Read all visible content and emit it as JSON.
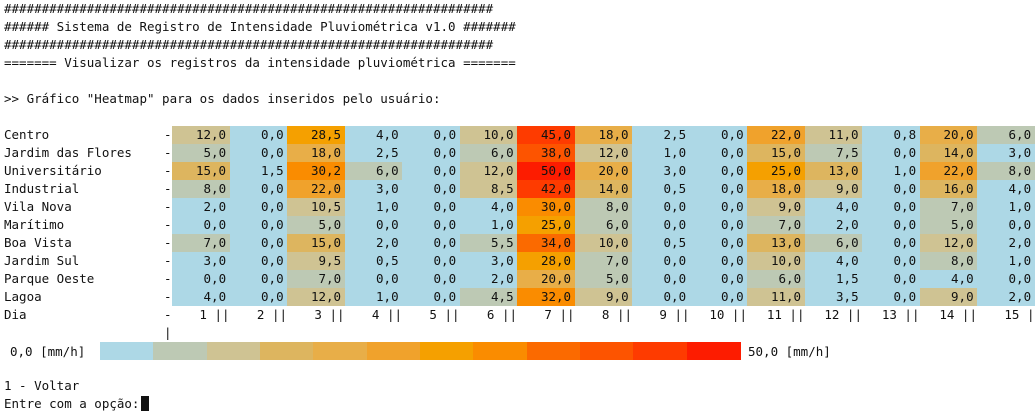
{
  "header": {
    "hash_line": "#################################################################",
    "title_line": "###### Sistema de Registro de Intensidade Pluviométrica v1.0 #######",
    "subtitle_line": "======= Visualizar os registros da intensidade pluviométrica ======="
  },
  "prompt_heading": ">> Gráfico \"Heatmap\" para os dados inseridos pelo usuário:",
  "chart_data": {
    "type": "heatmap",
    "title": "",
    "xlabel": "Dia",
    "ylabel": "",
    "x": [
      "1",
      "2",
      "3",
      "4",
      "5",
      "6",
      "7",
      "8",
      "9",
      "10",
      "11",
      "12",
      "13",
      "14",
      "15"
    ],
    "rows": [
      "Centro",
      "Jardim das Flores",
      "Universitário",
      "Industrial",
      "Vila Nova",
      "Marítimo",
      "Boa Vista",
      "Jardim Sul",
      "Parque Oeste",
      "Lagoa"
    ],
    "values": [
      [
        "12,0",
        "0,0",
        "28,5",
        "4,0",
        "0,0",
        "10,0",
        "45,0",
        "18,0",
        "2,5",
        "0,0",
        "22,0",
        "11,0",
        "0,8",
        "20,0",
        "6,0"
      ],
      [
        "5,0",
        "0,0",
        "18,0",
        "2,5",
        "0,0",
        "6,0",
        "38,0",
        "12,0",
        "1,0",
        "0,0",
        "15,0",
        "7,5",
        "0,0",
        "14,0",
        "3,0"
      ],
      [
        "15,0",
        "1,5",
        "30,2",
        "6,0",
        "0,0",
        "12,0",
        "50,0",
        "20,0",
        "3,0",
        "0,0",
        "25,0",
        "13,0",
        "1,0",
        "22,0",
        "8,0"
      ],
      [
        "8,0",
        "0,0",
        "22,0",
        "3,0",
        "0,0",
        "8,5",
        "42,0",
        "14,0",
        "0,5",
        "0,0",
        "18,0",
        "9,0",
        "0,0",
        "16,0",
        "4,0"
      ],
      [
        "2,0",
        "0,0",
        "10,5",
        "1,0",
        "0,0",
        "4,0",
        "30,0",
        "8,0",
        "0,0",
        "0,0",
        "9,0",
        "4,0",
        "0,0",
        "7,0",
        "1,0"
      ],
      [
        "0,0",
        "0,0",
        "5,0",
        "0,0",
        "0,0",
        "1,0",
        "25,0",
        "6,0",
        "0,0",
        "0,0",
        "7,0",
        "2,0",
        "0,0",
        "5,0",
        "0,0"
      ],
      [
        "7,0",
        "0,0",
        "15,0",
        "2,0",
        "0,0",
        "5,5",
        "34,0",
        "10,0",
        "0,5",
        "0,0",
        "13,0",
        "6,0",
        "0,0",
        "12,0",
        "2,0"
      ],
      [
        "3,0",
        "0,0",
        "9,5",
        "0,5",
        "0,0",
        "3,0",
        "28,0",
        "7,0",
        "0,0",
        "0,0",
        "10,0",
        "4,0",
        "0,0",
        "8,0",
        "1,0"
      ],
      [
        "0,0",
        "0,0",
        "7,0",
        "0,0",
        "0,0",
        "2,0",
        "20,0",
        "5,0",
        "0,0",
        "0,0",
        "6,0",
        "1,5",
        "0,0",
        "4,0",
        "0,0"
      ],
      [
        "4,0",
        "0,0",
        "12,0",
        "1,0",
        "0,0",
        "4,5",
        "32,0",
        "9,0",
        "0,0",
        "0,0",
        "11,0",
        "3,5",
        "0,0",
        "9,0",
        "2,0"
      ]
    ],
    "scale_min": 0,
    "scale_max": 50,
    "legend_min_label": "0,0 [mm/h]",
    "legend_max_label": "50,0 [mm/h]",
    "colors": [
      "#add8e6",
      "#bdc9b4",
      "#cfc393",
      "#ddb55f",
      "#e8ae48",
      "#f0a22c",
      "#f5a000",
      "#fa8c00",
      "#fb6a00",
      "#fd5400",
      "#fe3b00",
      "#fd1c00"
    ]
  },
  "menu": {
    "option_back": "1 - Voltar",
    "input_prompt": "Entre com a opção:"
  }
}
